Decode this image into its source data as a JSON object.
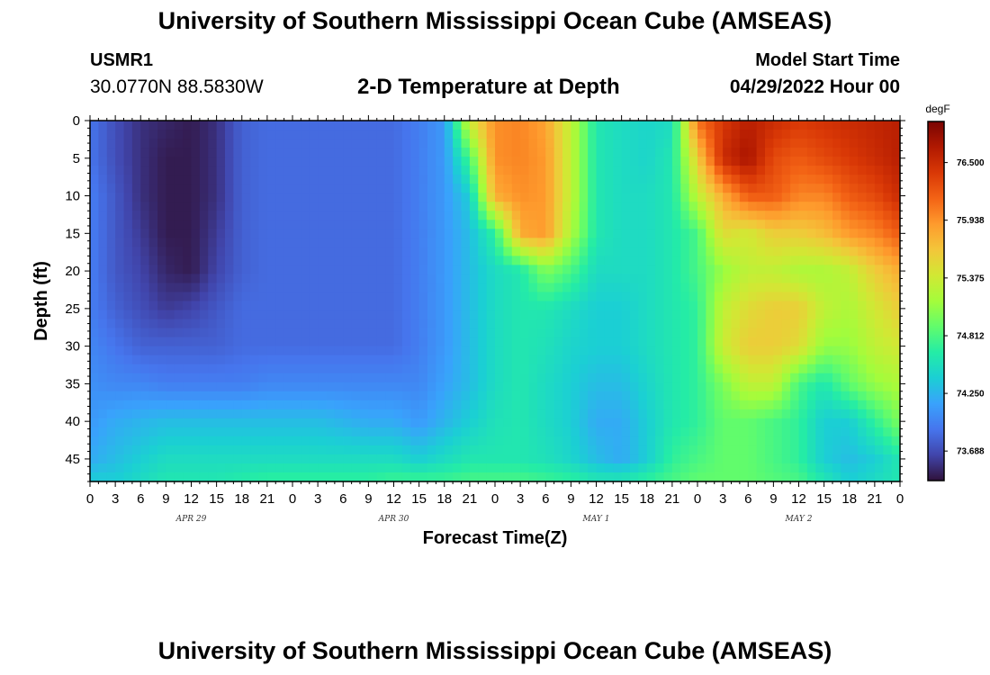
{
  "header": {
    "title": "University of Southern Mississippi Ocean Cube (AMSEAS)",
    "station_id": "USMR1",
    "station_coords": "30.0770N  88.5830W",
    "plot_title": "2-D Temperature at Depth",
    "model_start_label": "Model Start Time",
    "model_start_value": "04/29/2022 Hour 00"
  },
  "footer": {
    "title": "University of Southern Mississippi Ocean Cube (AMSEAS)"
  },
  "chart_data": {
    "type": "heatmap",
    "xlabel": "Forecast Time(Z)",
    "ylabel": "Depth (ft)",
    "x_unit": "hours from 04/29/2022 00Z",
    "xlim": [
      0,
      96
    ],
    "ylim": [
      0,
      48
    ],
    "y_inverted": true,
    "x_tick_labels": [
      "0",
      "3",
      "6",
      "9",
      "12",
      "15",
      "18",
      "21",
      "0",
      "3",
      "6",
      "9",
      "12",
      "15",
      "18",
      "21",
      "0",
      "3",
      "6",
      "9",
      "12",
      "15",
      "18",
      "21",
      "0",
      "3",
      "6",
      "9",
      "12",
      "15",
      "18",
      "21",
      "0"
    ],
    "day_labels": [
      {
        "label": "APR 29",
        "at_hour": 12
      },
      {
        "label": "APR 30",
        "at_hour": 36
      },
      {
        "label": "MAY 1",
        "at_hour": 60
      },
      {
        "label": "MAY 2",
        "at_hour": 84
      }
    ],
    "y_ticks": [
      0,
      5,
      10,
      15,
      20,
      25,
      30,
      35,
      40,
      45
    ],
    "colorbar": {
      "unit": "degF",
      "min": 73.4,
      "max": 76.9,
      "tick_labels": [
        "73.688",
        "74.250",
        "74.812",
        "75.375",
        "75.938",
        "76.500"
      ],
      "tick_values": [
        73.688,
        74.25,
        74.812,
        75.375,
        75.938,
        76.5
      ],
      "colors": [
        "#30123b",
        "#4145ab",
        "#4675ed",
        "#39a2fc",
        "#1bcfd4",
        "#24eca6",
        "#61fc6c",
        "#a4fc3b",
        "#d1e834",
        "#f3c63a",
        "#fe9b2d",
        "#f36315",
        "#d93806",
        "#b11901",
        "#7a0403"
      ]
    },
    "depths_ft": [
      0,
      5,
      10,
      15,
      20,
      25,
      30,
      35,
      40,
      45,
      48
    ],
    "hours": [
      0,
      3,
      6,
      9,
      12,
      15,
      18,
      21,
      24,
      27,
      30,
      33,
      36,
      39,
      42,
      45,
      48,
      51,
      54,
      57,
      60,
      63,
      66,
      69,
      72,
      75,
      78,
      81,
      84,
      87,
      90,
      93,
      96
    ],
    "temperature_degF": [
      [
        73.9,
        73.7,
        73.55,
        73.5,
        73.45,
        73.55,
        73.8,
        73.85,
        73.85,
        73.85,
        73.85,
        73.85,
        73.85,
        73.95,
        74.1,
        75.4,
        75.95,
        76.0,
        75.85,
        75.3,
        74.6,
        74.5,
        74.45,
        74.5,
        76.1,
        76.4,
        76.6,
        76.5,
        76.4,
        76.45,
        76.5,
        76.55,
        76.6
      ],
      [
        73.9,
        73.7,
        73.55,
        73.45,
        73.45,
        73.55,
        73.8,
        73.85,
        73.85,
        73.85,
        73.85,
        73.85,
        73.85,
        73.95,
        74.1,
        74.8,
        75.95,
        76.0,
        75.9,
        75.3,
        74.6,
        74.5,
        74.45,
        74.6,
        75.6,
        76.5,
        76.7,
        76.3,
        76.2,
        76.3,
        76.4,
        76.5,
        76.6
      ],
      [
        73.95,
        73.75,
        73.55,
        73.45,
        73.45,
        73.55,
        73.8,
        73.85,
        73.85,
        73.85,
        73.85,
        73.85,
        73.85,
        73.95,
        74.1,
        74.4,
        75.8,
        75.95,
        75.9,
        75.3,
        74.6,
        74.5,
        74.5,
        74.6,
        75.3,
        75.8,
        76.2,
        76.2,
        76.0,
        76.0,
        76.2,
        76.3,
        76.5
      ],
      [
        73.95,
        73.75,
        73.6,
        73.45,
        73.45,
        73.6,
        73.8,
        73.85,
        73.85,
        73.85,
        73.85,
        73.85,
        73.85,
        73.95,
        74.1,
        74.3,
        74.7,
        75.8,
        75.9,
        75.2,
        74.6,
        74.5,
        74.5,
        74.6,
        74.8,
        75.5,
        75.4,
        75.6,
        75.6,
        75.7,
        75.9,
        76.0,
        76.2
      ],
      [
        73.95,
        73.75,
        73.65,
        73.5,
        73.45,
        73.65,
        73.8,
        73.85,
        73.85,
        73.85,
        73.85,
        73.85,
        73.85,
        73.95,
        74.1,
        74.3,
        74.5,
        74.6,
        75.0,
        74.8,
        74.5,
        74.5,
        74.5,
        74.6,
        74.8,
        75.1,
        75.3,
        75.3,
        75.2,
        75.2,
        75.3,
        75.6,
        75.8
      ],
      [
        73.95,
        73.8,
        73.7,
        73.6,
        73.65,
        73.75,
        73.85,
        73.85,
        73.85,
        73.85,
        73.85,
        73.85,
        73.85,
        73.95,
        74.1,
        74.3,
        74.5,
        74.6,
        74.6,
        74.5,
        74.4,
        74.4,
        74.5,
        74.6,
        74.7,
        75.3,
        75.5,
        75.6,
        75.6,
        75.3,
        75.2,
        75.4,
        75.6
      ],
      [
        74.0,
        73.9,
        73.8,
        73.8,
        73.8,
        73.8,
        73.85,
        73.85,
        73.85,
        73.85,
        73.85,
        73.85,
        73.85,
        73.95,
        74.1,
        74.3,
        74.5,
        74.6,
        74.55,
        74.45,
        74.4,
        74.4,
        74.5,
        74.6,
        74.7,
        75.35,
        75.6,
        75.6,
        75.5,
        75.1,
        75.1,
        75.3,
        75.4
      ],
      [
        74.05,
        74.0,
        74.0,
        73.95,
        73.95,
        73.95,
        73.95,
        74.0,
        74.0,
        74.0,
        74.0,
        74.0,
        74.0,
        74.0,
        74.15,
        74.3,
        74.5,
        74.6,
        74.5,
        74.4,
        74.3,
        74.3,
        74.45,
        74.6,
        74.7,
        75.0,
        75.3,
        75.3,
        74.8,
        74.6,
        74.9,
        75.1,
        75.2
      ],
      [
        74.1,
        74.2,
        74.25,
        74.3,
        74.3,
        74.3,
        74.3,
        74.3,
        74.3,
        74.3,
        74.25,
        74.2,
        74.2,
        74.1,
        74.25,
        74.4,
        74.55,
        74.6,
        74.5,
        74.4,
        74.2,
        74.2,
        74.4,
        74.6,
        74.7,
        74.9,
        74.9,
        74.8,
        74.7,
        74.4,
        74.4,
        74.7,
        75.0
      ],
      [
        74.2,
        74.3,
        74.4,
        74.5,
        74.5,
        74.5,
        74.5,
        74.5,
        74.5,
        74.5,
        74.5,
        74.5,
        74.5,
        74.4,
        74.5,
        74.6,
        74.6,
        74.6,
        74.55,
        74.45,
        74.3,
        74.2,
        74.4,
        74.7,
        74.8,
        74.9,
        74.9,
        74.8,
        74.7,
        74.4,
        74.3,
        74.4,
        74.6
      ],
      [
        74.4,
        74.4,
        74.5,
        74.6,
        74.6,
        74.6,
        74.65,
        74.7,
        74.7,
        74.7,
        74.7,
        74.7,
        74.75,
        74.75,
        74.75,
        74.8,
        74.8,
        74.8,
        74.75,
        74.7,
        74.6,
        74.6,
        74.7,
        74.8,
        74.9,
        74.9,
        74.9,
        74.85,
        74.8,
        74.6,
        74.4,
        74.5,
        74.6
      ]
    ]
  }
}
